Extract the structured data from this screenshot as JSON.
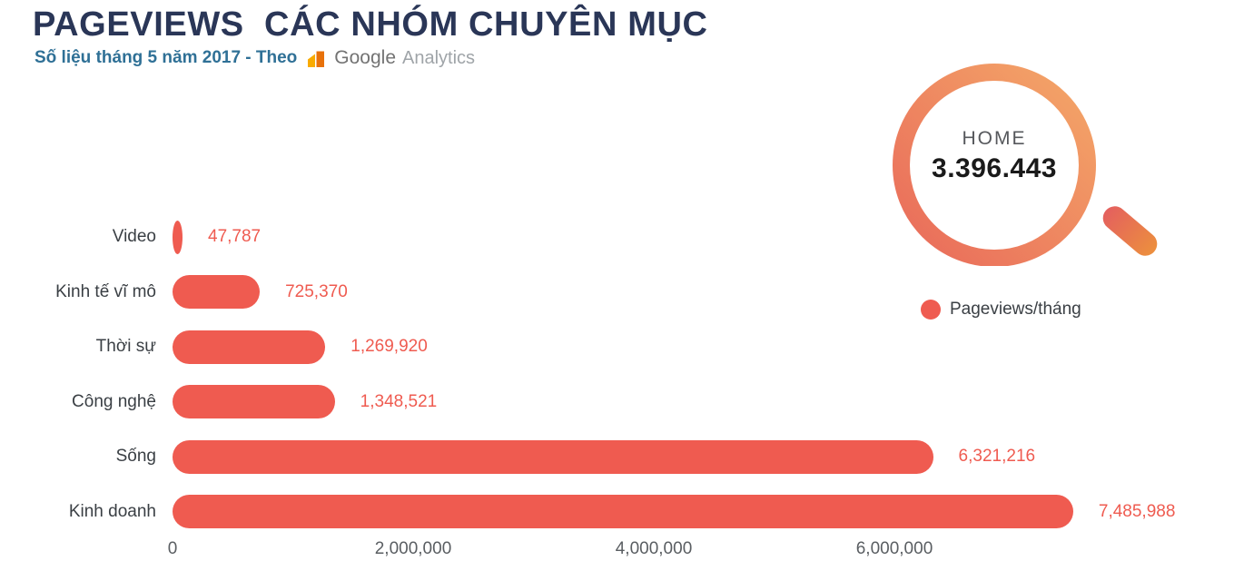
{
  "header": {
    "title": "PAGEVIEWS  CÁC NHÓM CHUYÊN MỤC",
    "subtitle": "Số liệu tháng 5 năm 2017 - Theo",
    "source": {
      "icon": "google-analytics-bars-icon",
      "name_primary": "Google",
      "name_secondary": "Analytics"
    }
  },
  "magnifier": {
    "label": "HOME",
    "value": "3.396.443"
  },
  "legend": {
    "label": "Pageviews/tháng"
  },
  "chart_data": {
    "type": "bar",
    "orientation": "horizontal",
    "title": "PAGEVIEWS  CÁC NHÓM CHUYÊN MỤC",
    "subtitle": "Số liệu tháng 5 năm 2017 - Theo Google Analytics",
    "categories": [
      "Video",
      "Kinh tế vĩ mô",
      "Thời sự",
      "Công nghệ",
      "Sống",
      "Kinh doanh"
    ],
    "values": [
      47787,
      725370,
      1269920,
      1348521,
      6321216,
      7485988
    ],
    "value_labels": [
      "47,787",
      "725,370",
      "1,269,920",
      "1,348,521",
      "6,321,216",
      "7,485,988"
    ],
    "x_tick_values": [
      0,
      2000000,
      4000000,
      6000000
    ],
    "x_tick_labels": [
      "0",
      "2,000,000",
      "4,000,000",
      "6,000,000"
    ],
    "xlim": [
      0,
      8000000
    ],
    "grid": false,
    "legend_position": "right",
    "legend_entries": [
      "Pageviews/tháng"
    ],
    "bar_color": "#EF5B50"
  },
  "colors": {
    "title": "#2A3657",
    "subtitle": "#2F7096",
    "bar": "#EF5B50",
    "value_label": "#EF5B50",
    "category_label": "#3A3F44",
    "axis_label": "#5A5E62",
    "magnifier_ring_gradient": [
      "#E96A5A",
      "#F4A768"
    ],
    "magnifier_handle_gradient": [
      "#E4605E",
      "#EC8F3E"
    ],
    "ga_icon_light": "#F9AB00",
    "ga_icon_dark": "#E8710A",
    "google_text": "#737373",
    "analytics_text": "#9FA4A8"
  }
}
